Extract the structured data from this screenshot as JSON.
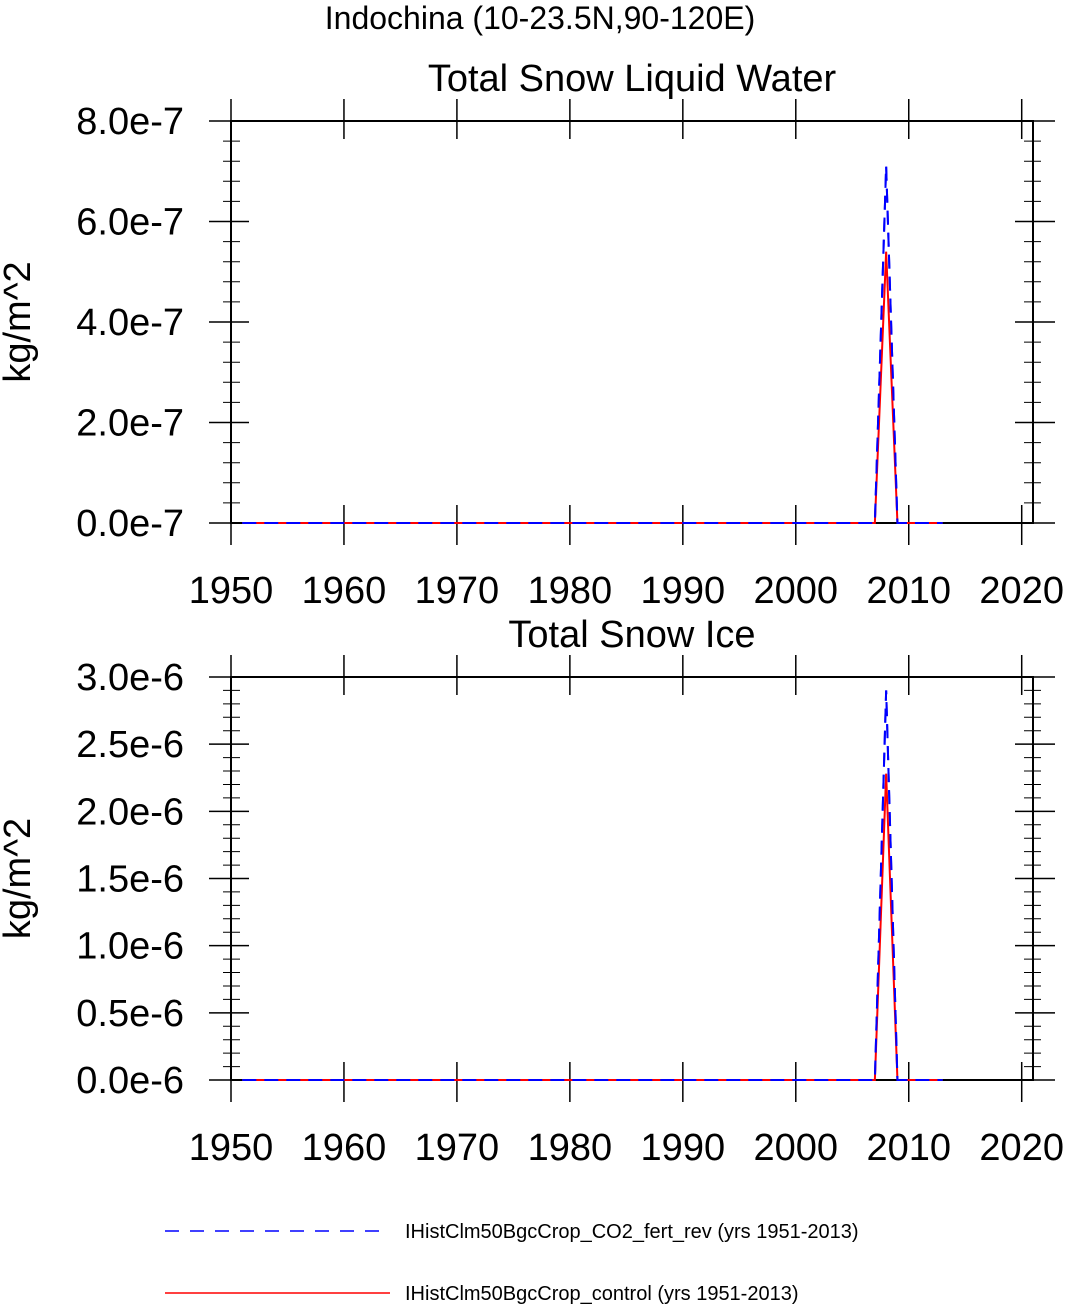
{
  "figure_title": "Indochina (10-23.5N,90-120E)",
  "chart_data": [
    {
      "type": "line",
      "title": "Total Snow Liquid Water",
      "xlabel": "",
      "ylabel": "kg/m^2",
      "xlim": [
        1950,
        2021
      ],
      "ylim": [
        0,
        8e-07
      ],
      "x_ticks": [
        1950,
        1960,
        1970,
        1980,
        1990,
        2000,
        2010,
        2020
      ],
      "x_tick_labels": [
        "1950",
        "1960",
        "1970",
        "1980",
        "1990",
        "2000",
        "2010",
        "2020"
      ],
      "y_ticks": [
        0,
        2e-07,
        4e-07,
        6e-07,
        8e-07
      ],
      "y_tick_labels": [
        "0.0e-7",
        "2.0e-7",
        "4.0e-7",
        "6.0e-7",
        "8.0e-7"
      ],
      "y_minor_per_major": 4,
      "x_minor_per_major": 0,
      "grid": false,
      "series": [
        {
          "name": "IHistClm50BgcCrop_CO2_fert_rev (yrs 1951-2013)",
          "color": "#0000ff",
          "dash": "dashed",
          "x": [
            1951,
            2007,
            2008,
            2009,
            2013
          ],
          "y": [
            0,
            0,
            7.1e-07,
            0,
            0
          ]
        },
        {
          "name": "IHistClm50BgcCrop_control (yrs 1951-2013)",
          "color": "#ff0000",
          "dash": "solid",
          "x": [
            1951,
            2007,
            2008,
            2009,
            2013
          ],
          "y": [
            0,
            0,
            5.4e-07,
            0,
            0
          ]
        }
      ]
    },
    {
      "type": "line",
      "title": "Total Snow Ice",
      "xlabel": "",
      "ylabel": "kg/m^2",
      "xlim": [
        1950,
        2021
      ],
      "ylim": [
        0,
        3e-06
      ],
      "x_ticks": [
        1950,
        1960,
        1970,
        1980,
        1990,
        2000,
        2010,
        2020
      ],
      "x_tick_labels": [
        "1950",
        "1960",
        "1970",
        "1980",
        "1990",
        "2000",
        "2010",
        "2020"
      ],
      "y_ticks": [
        0,
        5e-07,
        1e-06,
        1.5e-06,
        2e-06,
        2.5e-06,
        3e-06
      ],
      "y_tick_labels": [
        "0.0e-6",
        "0.5e-6",
        "1.0e-6",
        "1.5e-6",
        "2.0e-6",
        "2.5e-6",
        "3.0e-6"
      ],
      "y_minor_per_major": 4,
      "x_minor_per_major": 0,
      "grid": false,
      "series": [
        {
          "name": "IHistClm50BgcCrop_CO2_fert_rev (yrs 1951-2013)",
          "color": "#0000ff",
          "dash": "dashed",
          "x": [
            1951,
            2007,
            2008,
            2009,
            2013
          ],
          "y": [
            0,
            0,
            2.9e-06,
            0,
            0
          ]
        },
        {
          "name": "IHistClm50BgcCrop_control (yrs 1951-2013)",
          "color": "#ff0000",
          "dash": "solid",
          "x": [
            1951,
            2007,
            2008,
            2009,
            2013
          ],
          "y": [
            0,
            0,
            2.28e-06,
            0,
            0
          ]
        }
      ]
    }
  ],
  "legend": {
    "placement": "bottom",
    "items": [
      {
        "label": "IHistClm50BgcCrop_CO2_fert_rev (yrs 1951-2013)",
        "color": "#0000ff",
        "dash": "dashed"
      },
      {
        "label": "IHistClm50BgcCrop_control (yrs 1951-2013)",
        "color": "#ff0000",
        "dash": "solid"
      }
    ]
  }
}
